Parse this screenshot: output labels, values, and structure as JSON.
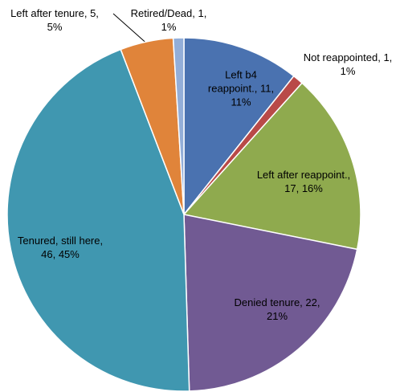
{
  "chart_data": {
    "type": "pie",
    "categories": [
      "Left b4 reappoint.",
      "Not reappointed",
      "Left after reappoint.",
      "Denied tenure",
      "Tenured, still here",
      "Left after tenure",
      "Retired/Dead"
    ],
    "values": [
      11,
      1,
      17,
      22,
      46,
      5,
      1
    ],
    "value_labels": [
      "Left b4 reappoint., 11, 11%",
      "Not reappointed, 1, 1%",
      "Left after reappoint., 17, 16%",
      "Denied tenure, 22, 21%",
      "Tenured, still here, 46, 45%",
      "Left after tenure, 5, 5%",
      "Retired/Dead, 1, 1%"
    ],
    "colors": [
      "#4a72b0",
      "#b94a48",
      "#8faa4e",
      "#715a93",
      "#4097b0",
      "#e0843a",
      "#93aed8"
    ]
  }
}
